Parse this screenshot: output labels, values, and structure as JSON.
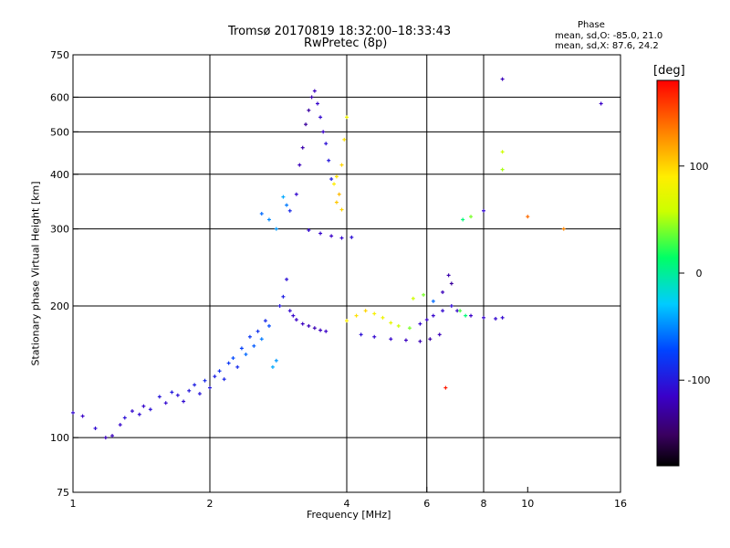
{
  "chart_data": {
    "type": "scatter",
    "title": "Tromsø 20170819 18:32:00–18:33:43",
    "subtitle": "RwPretec (8p)",
    "xlabel": "Frequency [MHz]",
    "ylabel": "Stationary phase Virtual Height [km]",
    "x_scale": "log",
    "y_scale": "log",
    "xlim": [
      1,
      16
    ],
    "ylim": [
      75,
      750
    ],
    "x_ticks": [
      1,
      2,
      4,
      6,
      8,
      10,
      16
    ],
    "x_tick_labels": [
      "1",
      "2",
      "4",
      "6",
      "8",
      "10",
      "16"
    ],
    "y_ticks": [
      75,
      100,
      200,
      300,
      400,
      500,
      600,
      750
    ],
    "y_tick_labels": [
      "75",
      "100",
      "200",
      "300",
      "400",
      "500",
      "600",
      "750"
    ],
    "x_grid": [
      2,
      4,
      6,
      8
    ],
    "y_grid": [
      100,
      200,
      300,
      400,
      500,
      600
    ],
    "grid": true,
    "phase_stats": {
      "title": "Phase",
      "o_line": "mean, sd,O: -85.0, 21.0",
      "x_line": "mean, sd,X: 87.6, 24.2"
    },
    "colorbar": {
      "label": "[deg]",
      "range": [
        -180,
        180
      ],
      "ticks": [
        100,
        0,
        -100
      ],
      "tick_labels": [
        "100",
        "0",
        "-100"
      ],
      "colormap": "rainbow"
    },
    "series": [
      {
        "columns": [
          "frequency_MHz",
          "virtual_height_km",
          "phase_deg"
        ],
        "points": [
          [
            1.0,
            114,
            -110
          ],
          [
            1.05,
            112,
            -115
          ],
          [
            1.12,
            105,
            -108
          ],
          [
            1.18,
            100,
            -120
          ],
          [
            1.22,
            101,
            -118
          ],
          [
            1.27,
            107,
            -112
          ],
          [
            1.3,
            111,
            -105
          ],
          [
            1.35,
            115,
            -110
          ],
          [
            1.4,
            113,
            -108
          ],
          [
            1.43,
            118,
            -112
          ],
          [
            1.48,
            116,
            -105
          ],
          [
            1.55,
            124,
            -102
          ],
          [
            1.6,
            120,
            -110
          ],
          [
            1.65,
            127,
            -98
          ],
          [
            1.7,
            125,
            -105
          ],
          [
            1.75,
            121,
            -108
          ],
          [
            1.8,
            128,
            -100
          ],
          [
            1.85,
            132,
            -95
          ],
          [
            1.9,
            126,
            -102
          ],
          [
            1.95,
            135,
            -90
          ],
          [
            2.0,
            130,
            -100
          ],
          [
            2.05,
            138,
            -95
          ],
          [
            2.1,
            142,
            -85
          ],
          [
            2.15,
            136,
            -92
          ],
          [
            2.2,
            148,
            -80
          ],
          [
            2.25,
            152,
            -70
          ],
          [
            2.3,
            145,
            -88
          ],
          [
            2.35,
            160,
            -75
          ],
          [
            2.4,
            155,
            -60
          ],
          [
            2.45,
            170,
            -80
          ],
          [
            2.5,
            162,
            -65
          ],
          [
            2.55,
            175,
            -85
          ],
          [
            2.6,
            168,
            -55
          ],
          [
            2.65,
            185,
            -90
          ],
          [
            2.7,
            180,
            -70
          ],
          [
            2.75,
            145,
            -40
          ],
          [
            2.8,
            150,
            -45
          ],
          [
            2.85,
            200,
            -100
          ],
          [
            2.9,
            210,
            -95
          ],
          [
            2.95,
            230,
            -105
          ],
          [
            3.0,
            195,
            -110
          ],
          [
            3.05,
            190,
            -112
          ],
          [
            3.1,
            186,
            -115
          ],
          [
            3.2,
            182,
            -118
          ],
          [
            3.3,
            180,
            -120
          ],
          [
            3.4,
            178,
            -122
          ],
          [
            3.5,
            176,
            -118
          ],
          [
            3.6,
            175,
            -115
          ],
          [
            2.6,
            325,
            -60
          ],
          [
            2.7,
            315,
            -50
          ],
          [
            2.8,
            300,
            -45
          ],
          [
            2.9,
            355,
            -40
          ],
          [
            2.95,
            340,
            -55
          ],
          [
            3.0,
            330,
            -90
          ],
          [
            3.1,
            360,
            -110
          ],
          [
            3.15,
            420,
            -120
          ],
          [
            3.2,
            460,
            -125
          ],
          [
            3.25,
            520,
            -130
          ],
          [
            3.3,
            560,
            -128
          ],
          [
            3.35,
            600,
            -125
          ],
          [
            3.4,
            620,
            -118
          ],
          [
            3.45,
            580,
            -112
          ],
          [
            3.5,
            540,
            -110
          ],
          [
            3.55,
            500,
            -115
          ],
          [
            3.6,
            470,
            -105
          ],
          [
            3.65,
            430,
            -100
          ],
          [
            3.7,
            390,
            -95
          ],
          [
            3.3,
            298,
            -110
          ],
          [
            3.5,
            293,
            -112
          ],
          [
            3.7,
            289,
            -115
          ],
          [
            3.9,
            286,
            -110
          ],
          [
            4.1,
            287,
            -105
          ],
          [
            3.75,
            380,
            90
          ],
          [
            3.8,
            395,
            95
          ],
          [
            3.85,
            360,
            110
          ],
          [
            3.9,
            420,
            100
          ],
          [
            3.95,
            480,
            95
          ],
          [
            4.0,
            540,
            80
          ],
          [
            3.8,
            345,
            105
          ],
          [
            3.9,
            332,
            100
          ],
          [
            4.0,
            185,
            90
          ],
          [
            4.2,
            190,
            95
          ],
          [
            4.4,
            195,
            100
          ],
          [
            4.6,
            192,
            85
          ],
          [
            4.8,
            188,
            80
          ],
          [
            5.0,
            183,
            75
          ],
          [
            5.2,
            180,
            60
          ],
          [
            5.5,
            178,
            40
          ],
          [
            5.8,
            182,
            -110
          ],
          [
            6.0,
            186,
            -115
          ],
          [
            6.2,
            190,
            -112
          ],
          [
            6.5,
            195,
            -110
          ],
          [
            6.8,
            200,
            -108
          ],
          [
            7.0,
            195,
            -112
          ],
          [
            7.5,
            190,
            -115
          ],
          [
            8.0,
            188,
            -112
          ],
          [
            8.5,
            187,
            -110
          ],
          [
            8.8,
            188,
            -110
          ],
          [
            4.3,
            172,
            -105
          ],
          [
            4.6,
            170,
            -110
          ],
          [
            5.0,
            168,
            -112
          ],
          [
            5.4,
            167,
            -118
          ],
          [
            5.8,
            166,
            -122
          ],
          [
            6.1,
            168,
            -125
          ],
          [
            6.4,
            172,
            -120
          ],
          [
            5.6,
            208,
            60
          ],
          [
            5.9,
            212,
            40
          ],
          [
            6.2,
            205,
            -60
          ],
          [
            6.5,
            215,
            -120
          ],
          [
            6.7,
            235,
            -125
          ],
          [
            6.8,
            225,
            -130
          ],
          [
            7.1,
            195,
            30
          ],
          [
            7.3,
            190,
            10
          ],
          [
            7.2,
            315,
            10
          ],
          [
            7.5,
            320,
            40
          ],
          [
            8.0,
            330,
            -110
          ],
          [
            8.8,
            410,
            50
          ],
          [
            8.8,
            450,
            60
          ],
          [
            10.0,
            320,
            140
          ],
          [
            12.0,
            300,
            130
          ],
          [
            14.5,
            580,
            -115
          ],
          [
            8.8,
            660,
            -120
          ],
          [
            6.6,
            130,
            170
          ]
        ]
      }
    ]
  }
}
